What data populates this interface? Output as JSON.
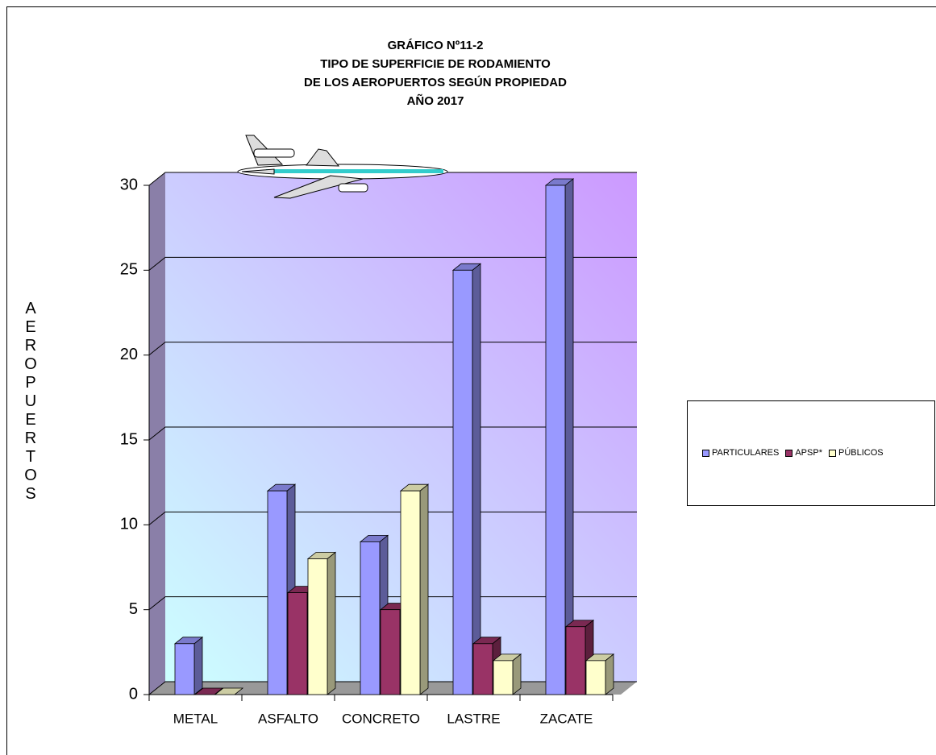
{
  "chart_data": {
    "type": "bar3d",
    "title": [
      "GRÁFICO Nº11-2",
      "TIPO DE SUPERFICIE  DE RODAMIENTO",
      "DE LOS AEROPUERTOS  SEGÚN  PROPIEDAD",
      "AÑO 2017"
    ],
    "y_label": "AEROPUERTOS",
    "categories": [
      "METAL",
      "ASFALTO",
      "CONCRETO",
      "LASTRE",
      "ZACATE"
    ],
    "series": [
      {
        "name": "PARTICULARES",
        "color": "#9999ff",
        "values": [
          3,
          12,
          9,
          25,
          30
        ]
      },
      {
        "name": "APSP*",
        "color": "#993366",
        "values": [
          0,
          6,
          5,
          3,
          4
        ]
      },
      {
        "name": "PÚBLICOS",
        "color": "#ffffcc",
        "values": [
          0,
          8,
          12,
          2,
          2
        ]
      }
    ],
    "ylim": [
      0,
      30
    ],
    "yticks": [
      0,
      5,
      10,
      15,
      20,
      25,
      30
    ],
    "grid": true
  }
}
